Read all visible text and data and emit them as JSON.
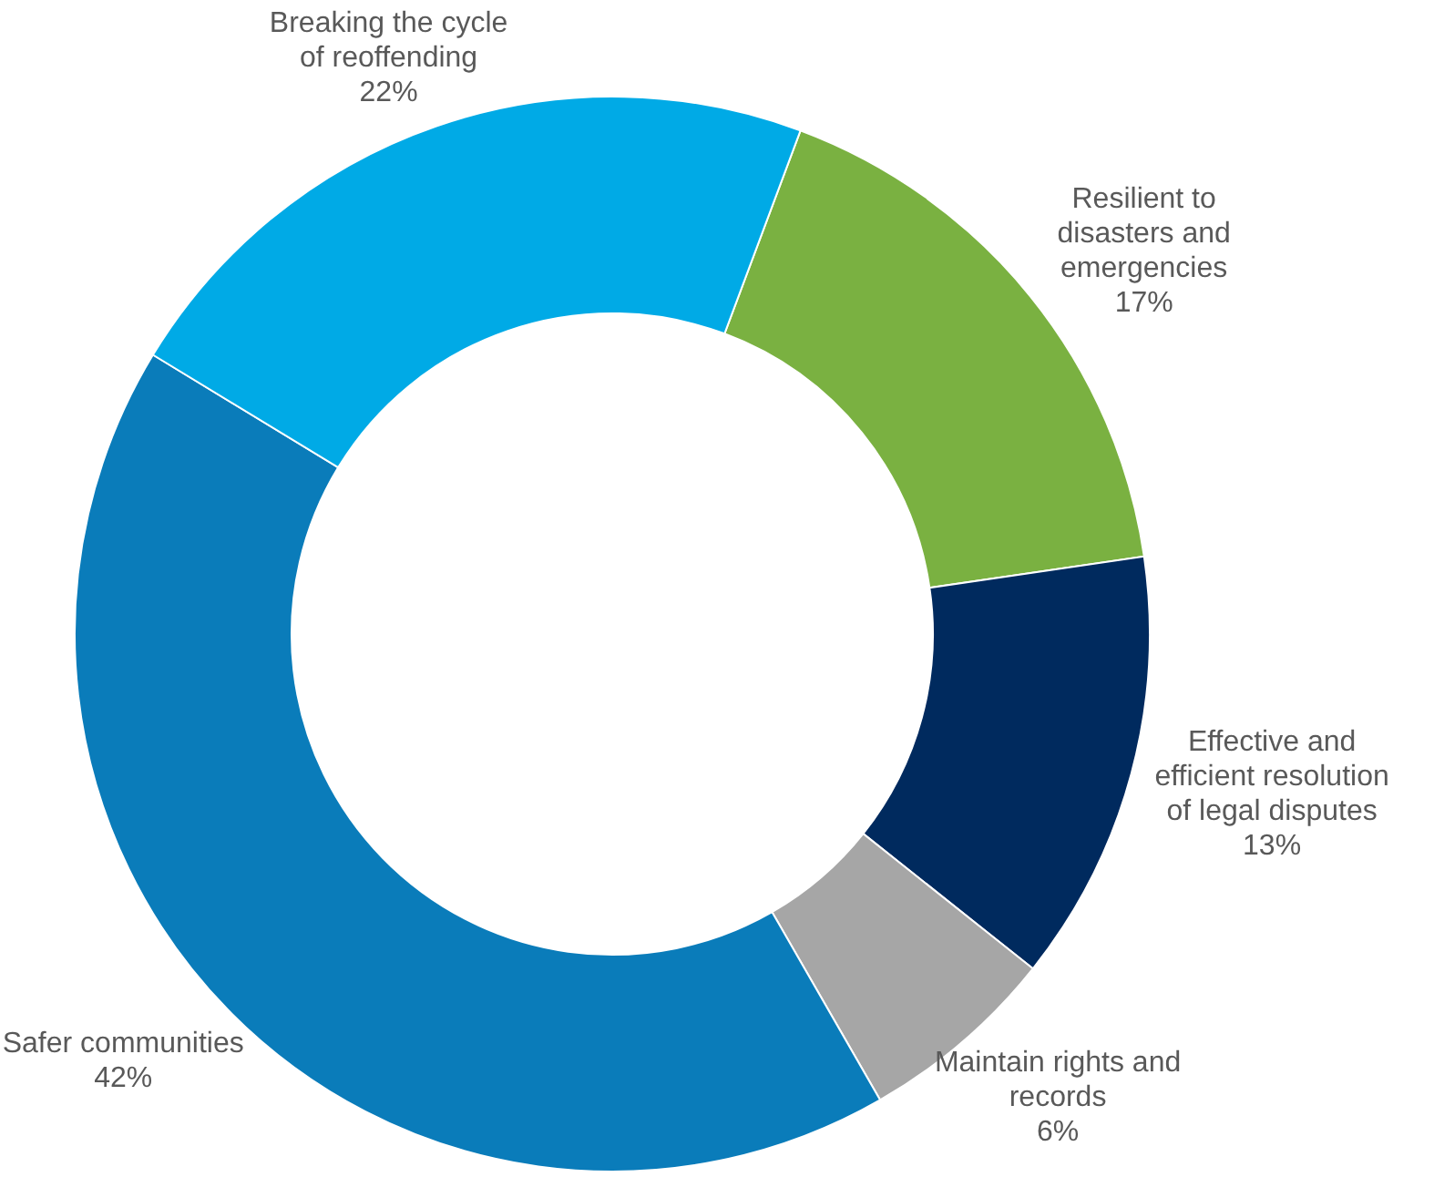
{
  "chart_data": {
    "type": "donut",
    "categories": [
      "Resilient to disasters and emergencies",
      "Effective and efficient resolution of legal disputes",
      "Maintain rights and records",
      "Safer communities",
      "Breaking the cycle of reoffending"
    ],
    "values": [
      17,
      13,
      6,
      42,
      22
    ],
    "value_labels": [
      "17%",
      "13%",
      "6%",
      "42%",
      "22%"
    ],
    "colors": [
      "#7ab141",
      "#002a5e",
      "#a6a6a6",
      "#0a7cba",
      "#00aae6"
    ]
  }
}
